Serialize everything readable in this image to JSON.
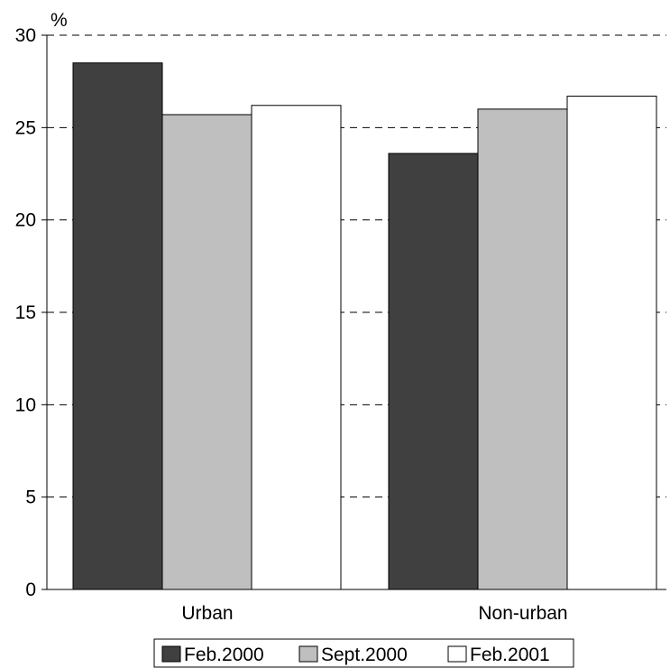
{
  "chart_data": {
    "type": "bar",
    "y_unit": "%",
    "categories": [
      "Urban",
      "Non-urban"
    ],
    "series": [
      {
        "name": "Feb.2000",
        "color": "#404040",
        "values": [
          28.5,
          23.6
        ]
      },
      {
        "name": "Sept.2000",
        "color": "#bfbfbf",
        "values": [
          25.7,
          26.0
        ]
      },
      {
        "name": "Feb.2001",
        "color": "#ffffff",
        "values": [
          26.2,
          26.7
        ]
      }
    ],
    "ylim": [
      0,
      30
    ],
    "yticks": [
      0,
      5,
      10,
      15,
      20,
      25,
      30
    ],
    "grid": "dashed horizontal",
    "legend_position": "bottom"
  }
}
